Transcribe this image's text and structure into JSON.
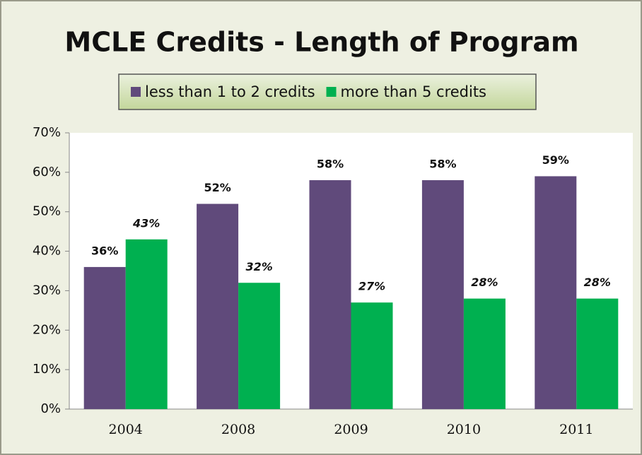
{
  "chart_data": {
    "type": "bar",
    "title": "MCLE Credits - Length of Program",
    "categories": [
      "2004",
      "2008",
      "2009",
      "2010",
      "2011"
    ],
    "series": [
      {
        "name": "less than 1 to 2 credits",
        "color": "#604a7b",
        "values": [
          36,
          52,
          58,
          58,
          59
        ],
        "value_labels": [
          "36%",
          "52%",
          "58%",
          "58%",
          "59%"
        ]
      },
      {
        "name": "more than 5 credits",
        "color": "#00b050",
        "values": [
          43,
          32,
          27,
          28,
          28
        ],
        "value_labels": [
          "43%",
          "32%",
          "27%",
          "28%",
          "28%"
        ]
      }
    ],
    "ylim": [
      0,
      70
    ],
    "yticks": [
      {
        "value": 0,
        "label": "0%"
      },
      {
        "value": 10,
        "label": "10%"
      },
      {
        "value": 20,
        "label": "20%"
      },
      {
        "value": 30,
        "label": "30%"
      },
      {
        "value": 40,
        "label": "40%"
      },
      {
        "value": 50,
        "label": "50%"
      },
      {
        "value": 60,
        "label": "60%"
      },
      {
        "value": 70,
        "label": "70%"
      }
    ],
    "grid": false,
    "legend": "top"
  }
}
